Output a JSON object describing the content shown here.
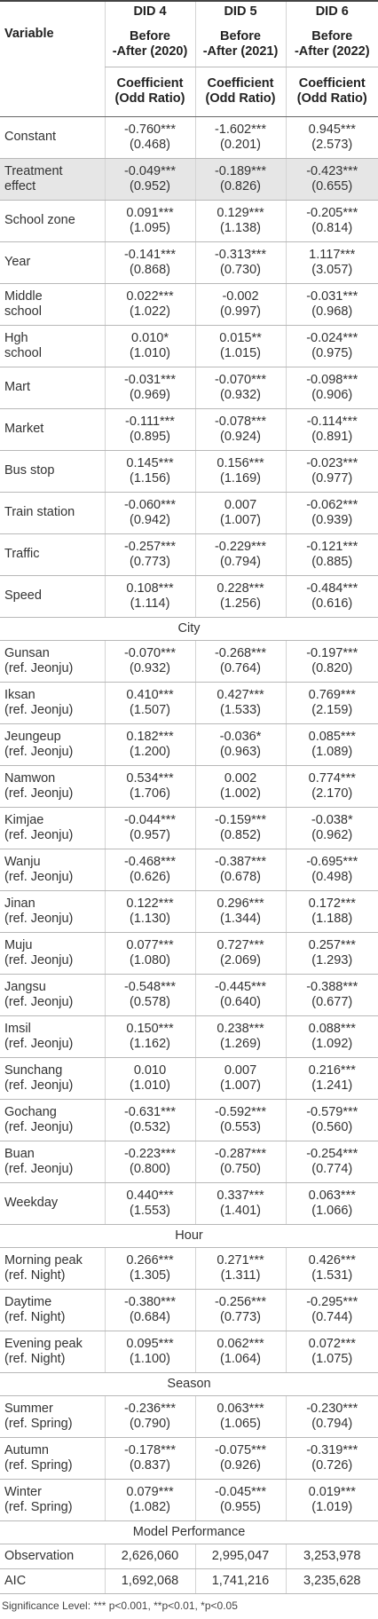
{
  "header": {
    "variable": "Variable",
    "columns": [
      {
        "model": "DID 4",
        "period": [
          "Before",
          "-After (2020)"
        ],
        "measure": [
          "Coefficient",
          "(Odd Ratio)"
        ]
      },
      {
        "model": "DID 5",
        "period": [
          "Before",
          "-After (2021)"
        ],
        "measure": [
          "Coefficient",
          "(Odd Ratio)"
        ]
      },
      {
        "model": "DID 6",
        "period": [
          "Before",
          "-After (2022)"
        ],
        "measure": [
          "Coefficient",
          "(Odd Ratio)"
        ]
      }
    ]
  },
  "rows": [
    {
      "label": [
        "Constant"
      ],
      "cells": [
        [
          "-0.760***",
          "(0.468)"
        ],
        [
          "-1.602***",
          "(0.201)"
        ],
        [
          "0.945***",
          "(2.573)"
        ]
      ]
    },
    {
      "label": [
        "Treatment",
        "effect"
      ],
      "cells": [
        [
          "-0.049***",
          "(0.952)"
        ],
        [
          "-0.189***",
          "(0.826)"
        ],
        [
          "-0.423***",
          "(0.655)"
        ]
      ]
    },
    {
      "label": [
        "School zone"
      ],
      "cells": [
        [
          "0.091***",
          "(1.095)"
        ],
        [
          "0.129***",
          "(1.138)"
        ],
        [
          "-0.205***",
          "(0.814)"
        ]
      ]
    },
    {
      "label": [
        "Year"
      ],
      "cells": [
        [
          "-0.141***",
          "(0.868)"
        ],
        [
          "-0.313***",
          "(0.730)"
        ],
        [
          "1.117***",
          "(3.057)"
        ]
      ]
    },
    {
      "label": [
        "Middle",
        "school"
      ],
      "cells": [
        [
          "0.022***",
          "(1.022)"
        ],
        [
          "-0.002",
          "(0.997)"
        ],
        [
          "-0.031***",
          "(0.968)"
        ]
      ]
    },
    {
      "label": [
        "Hgh",
        "school"
      ],
      "cells": [
        [
          "0.010*",
          "(1.010)"
        ],
        [
          "0.015**",
          "(1.015)"
        ],
        [
          "-0.024***",
          "(0.975)"
        ]
      ]
    },
    {
      "label": [
        "Mart"
      ],
      "cells": [
        [
          "-0.031***",
          "(0.969)"
        ],
        [
          "-0.070***",
          "(0.932)"
        ],
        [
          "-0.098***",
          "(0.906)"
        ]
      ]
    },
    {
      "label": [
        "Market"
      ],
      "cells": [
        [
          "-0.111***",
          "(0.895)"
        ],
        [
          "-0.078***",
          "(0.924)"
        ],
        [
          "-0.114***",
          "(0.891)"
        ]
      ]
    },
    {
      "label": [
        "Bus stop"
      ],
      "cells": [
        [
          "0.145***",
          "(1.156)"
        ],
        [
          "0.156***",
          "(1.169)"
        ],
        [
          "-0.023***",
          "(0.977)"
        ]
      ]
    },
    {
      "label": [
        "Train station"
      ],
      "cells": [
        [
          "-0.060***",
          "(0.942)"
        ],
        [
          "0.007",
          "(1.007)"
        ],
        [
          "-0.062***",
          "(0.939)"
        ]
      ]
    },
    {
      "label": [
        "Traffic"
      ],
      "cells": [
        [
          "-0.257***",
          "(0.773)"
        ],
        [
          "-0.229***",
          "(0.794)"
        ],
        [
          "-0.121***",
          "(0.885)"
        ]
      ]
    },
    {
      "label": [
        "Speed"
      ],
      "cells": [
        [
          "0.108***",
          "(1.114)"
        ],
        [
          "0.228***",
          "(1.256)"
        ],
        [
          "-0.484***",
          "(0.616)"
        ]
      ]
    },
    {
      "section": "City"
    },
    {
      "label": [
        "Gunsan",
        "(ref. Jeonju)"
      ],
      "cells": [
        [
          "-0.070***",
          "(0.932)"
        ],
        [
          "-0.268***",
          "(0.764)"
        ],
        [
          "-0.197***",
          "(0.820)"
        ]
      ]
    },
    {
      "label": [
        "Iksan",
        "(ref. Jeonju)"
      ],
      "cells": [
        [
          "0.410***",
          "(1.507)"
        ],
        [
          "0.427***",
          "(1.533)"
        ],
        [
          "0.769***",
          "(2.159)"
        ]
      ]
    },
    {
      "label": [
        "Jeungeup",
        "(ref. Jeonju)"
      ],
      "cells": [
        [
          "0.182***",
          "(1.200)"
        ],
        [
          "-0.036*",
          "(0.963)"
        ],
        [
          "0.085***",
          "(1.089)"
        ]
      ]
    },
    {
      "label": [
        "Namwon",
        "(ref. Jeonju)"
      ],
      "cells": [
        [
          "0.534***",
          "(1.706)"
        ],
        [
          "0.002",
          "(1.002)"
        ],
        [
          "0.774***",
          "(2.170)"
        ]
      ]
    },
    {
      "label": [
        "Kimjae",
        "(ref. Jeonju)"
      ],
      "cells": [
        [
          "-0.044***",
          "(0.957)"
        ],
        [
          "-0.159***",
          "(0.852)"
        ],
        [
          "-0.038*",
          "(0.962)"
        ]
      ]
    },
    {
      "label": [
        "Wanju",
        "(ref. Jeonju)"
      ],
      "cells": [
        [
          "-0.468***",
          "(0.626)"
        ],
        [
          "-0.387***",
          "(0.678)"
        ],
        [
          "-0.695***",
          "(0.498)"
        ]
      ]
    },
    {
      "label": [
        "Jinan",
        "(ref. Jeonju)"
      ],
      "cells": [
        [
          "0.122***",
          "(1.130)"
        ],
        [
          "0.296***",
          "(1.344)"
        ],
        [
          "0.172***",
          "(1.188)"
        ]
      ]
    },
    {
      "label": [
        "Muju",
        "(ref. Jeonju)"
      ],
      "cells": [
        [
          "0.077***",
          "(1.080)"
        ],
        [
          "0.727***",
          "(2.069)"
        ],
        [
          "0.257***",
          "(1.293)"
        ]
      ]
    },
    {
      "label": [
        "Jangsu",
        "(ref. Jeonju)"
      ],
      "cells": [
        [
          "-0.548***",
          "(0.578)"
        ],
        [
          "-0.445***",
          "(0.640)"
        ],
        [
          "-0.388***",
          "(0.677)"
        ]
      ]
    },
    {
      "label": [
        "Imsil",
        "(ref. Jeonju)"
      ],
      "cells": [
        [
          "0.150***",
          "(1.162)"
        ],
        [
          "0.238***",
          "(1.269)"
        ],
        [
          "0.088***",
          "(1.092)"
        ]
      ]
    },
    {
      "label": [
        "Sunchang",
        "(ref. Jeonju)"
      ],
      "cells": [
        [
          "0.010",
          "(1.010)"
        ],
        [
          "0.007",
          "(1.007)"
        ],
        [
          "0.216***",
          "(1.241)"
        ]
      ]
    },
    {
      "label": [
        "Gochang",
        "(ref. Jeonju)"
      ],
      "cells": [
        [
          "-0.631***",
          "(0.532)"
        ],
        [
          "-0.592***",
          "(0.553)"
        ],
        [
          "-0.579***",
          "(0.560)"
        ]
      ]
    },
    {
      "label": [
        "Buan",
        "(ref. Jeonju)"
      ],
      "cells": [
        [
          "-0.223***",
          "(0.800)"
        ],
        [
          "-0.287***",
          "(0.750)"
        ],
        [
          "-0.254***",
          "(0.774)"
        ]
      ]
    },
    {
      "label": [
        "Weekday"
      ],
      "cells": [
        [
          "0.440***",
          "(1.553)"
        ],
        [
          "0.337***",
          "(1.401)"
        ],
        [
          "0.063***",
          "(1.066)"
        ]
      ]
    },
    {
      "section": "Hour"
    },
    {
      "label": [
        "Morning peak",
        "(ref. Night)"
      ],
      "cells": [
        [
          "0.266***",
          "(1.305)"
        ],
        [
          "0.271***",
          "(1.311)"
        ],
        [
          "0.426***",
          "(1.531)"
        ]
      ]
    },
    {
      "label": [
        "Daytime",
        "(ref. Night)"
      ],
      "cells": [
        [
          "-0.380***",
          "(0.684)"
        ],
        [
          "-0.256***",
          "(0.773)"
        ],
        [
          "-0.295***",
          "(0.744)"
        ]
      ]
    },
    {
      "label": [
        "Evening peak",
        "(ref. Night)"
      ],
      "cells": [
        [
          "0.095***",
          "(1.100)"
        ],
        [
          "0.062***",
          "(1.064)"
        ],
        [
          "0.072***",
          "(1.075)"
        ]
      ]
    },
    {
      "section": "Season"
    },
    {
      "label": [
        "Summer",
        "(ref. Spring)"
      ],
      "cells": [
        [
          "-0.236***",
          "(0.790)"
        ],
        [
          "0.063***",
          "(1.065)"
        ],
        [
          "-0.230***",
          "(0.794)"
        ]
      ]
    },
    {
      "label": [
        "Autumn",
        "(ref. Spring)"
      ],
      "cells": [
        [
          "-0.178***",
          "(0.837)"
        ],
        [
          "-0.075***",
          "(0.926)"
        ],
        [
          "-0.319***",
          "(0.726)"
        ]
      ]
    },
    {
      "label": [
        "Winter",
        "(ref. Spring)"
      ],
      "cells": [
        [
          "0.079***",
          "(1.082)"
        ],
        [
          "-0.045***",
          "(0.955)"
        ],
        [
          "0.019***",
          "(1.019)"
        ]
      ]
    },
    {
      "section": "Model Performance"
    },
    {
      "label": [
        "Observation"
      ],
      "cells": [
        [
          "2,626,060"
        ],
        [
          "2,995,047"
        ],
        [
          "3,253,978"
        ]
      ]
    },
    {
      "label": [
        "AIC"
      ],
      "cells": [
        [
          "1,692,068"
        ],
        [
          "1,741,216"
        ],
        [
          "3,235,628"
        ]
      ]
    }
  ],
  "footnote": "Significance Level: *** p<0.001, **p<0.01, *p<0.05"
}
